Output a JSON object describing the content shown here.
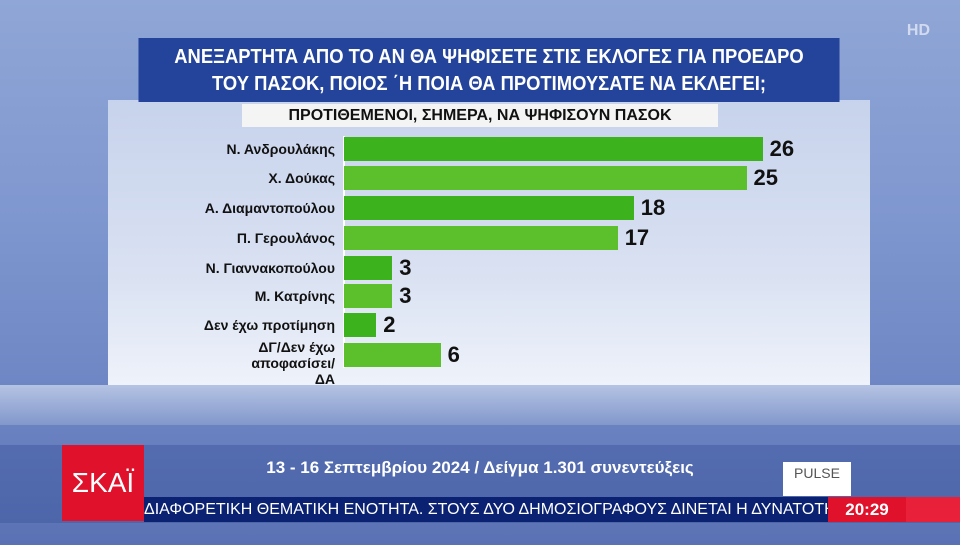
{
  "header": {
    "title_line1": "ΑΝΕΞΑΡΤΗΤΑ ΑΠΟ ΤΟ ΑΝ ΘΑ ΨΗΦΙΣΕΤΕ ΣΤΙΣ ΕΚΛΟΓΕΣ ΓΙΑ ΠΡΟΕΔΡΟ",
    "title_line2": "ΤΟΥ ΠΑΣΟΚ, ΠΟΙΟΣ ΄Η ΠΟΙΑ ΘΑ ΠΡΟΤΙΜΟΥΣΑΤΕ ΝΑ ΕΚΛΕΓΕΙ;",
    "subtitle": "ΠΡΟΤΙΘΕΜΕΝΟΙ, ΣΗΜΕΡΑ, ΝΑ ΨΗΦΙΣΟΥΝ ΠΑΣΟΚ",
    "hd_badge": "HD"
  },
  "chart_data": {
    "type": "bar",
    "orientation": "horizontal",
    "categories": [
      "Ν. Ανδρουλάκης",
      "Χ. Δούκας",
      "Α. Διαμαντοπούλου",
      "Π. Γερουλάνος",
      "Ν. Γιαννακοπούλου",
      "Μ. Κατρίνης",
      "Δεν έχω προτίμηση",
      "ΔΓ/Δεν έχω αποφασίσει/ ΔΑ"
    ],
    "values": [
      26,
      25,
      18,
      17,
      3,
      3,
      2,
      6
    ],
    "colors": [
      "#3cb21c",
      "#5cbf2c"
    ],
    "grid": false
  },
  "footer": {
    "logo": "ΣΚΑΪ",
    "date_sample": "13 - 16 Σεπτεμβρίου 2024 / Δείγμα 1.301 συνεντεύξεις",
    "pollster": "PULSE",
    "ticker": "ΔΙΑΦΟΡΕΤΙΚΗ ΘΕΜΑΤΙΚΗ ΕΝΟΤΗΤΑ. ΣΤΟΥΣ ΔΥΟ ΔΗΜΟΣΙΟΓΡΑΦΟΥΣ ΔΙΝΕΤΑΙ Η ΔΥΝΑΤΟΤΗΤΑ",
    "time": "20:29"
  }
}
